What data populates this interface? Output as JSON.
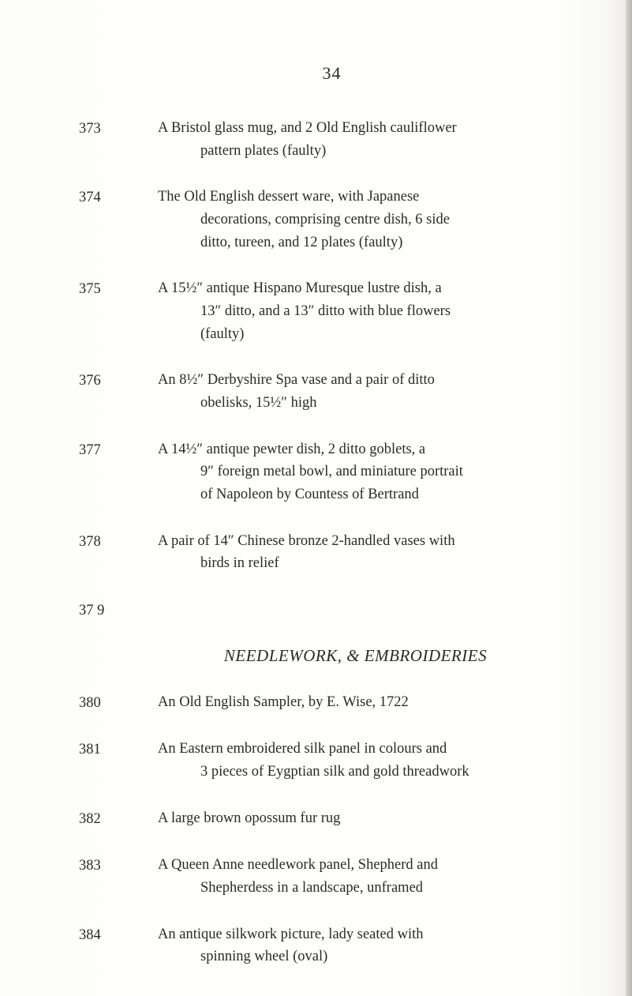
{
  "page_number": "34",
  "section_title": "NEEDLEWORK, & EMBROIDERIES",
  "entries": [
    {
      "lot": "373",
      "l1": "A Bristol glass mug, and 2 Old English cauliflower",
      "c1": "pattern plates (faulty)"
    },
    {
      "lot": "374",
      "l1": "The Old English dessert ware, with Japanese",
      "c1": "decorations, comprising centre dish, 6 side",
      "c2": "ditto, tureen, and 12 plates (faulty)"
    },
    {
      "lot": "375",
      "l1": "A 15½″ antique Hispano Muresque lustre dish, a",
      "c1": "13″ ditto, and a 13″ ditto with blue flowers",
      "c2": "(faulty)"
    },
    {
      "lot": "376",
      "l1": "An 8½″ Derbyshire Spa vase and a pair of ditto",
      "c1": "obelisks, 15½″ high"
    },
    {
      "lot": "377",
      "l1": "A 14½″ antique pewter dish, 2 ditto goblets, a",
      "c1": "9″ foreign metal bowl, and miniature portrait",
      "c2": "of Napoleon by Countess of Bertrand"
    },
    {
      "lot": "378",
      "l1": "A pair of 14″ Chinese bronze 2-handled vases with",
      "c1": "birds in relief"
    },
    {
      "lot": "37 9",
      "l1": ""
    }
  ],
  "entries2": [
    {
      "lot": "380",
      "l1": "An Old English Sampler, by E. Wise, 1722"
    },
    {
      "lot": "381",
      "l1": "An Eastern embroidered silk panel in colours and",
      "c1": "3 pieces of Eygptian silk and gold threadwork"
    },
    {
      "lot": "382",
      "l1": "A large brown opossum fur rug"
    },
    {
      "lot": "383",
      "l1": "A Queen Anne needlework panel, Shepherd and",
      "c1": "Shepherdess in a landscape, unframed"
    },
    {
      "lot": "384",
      "l1": "An antique silkwork picture, lady seated with",
      "c1": "spinning wheel (oval)"
    }
  ]
}
